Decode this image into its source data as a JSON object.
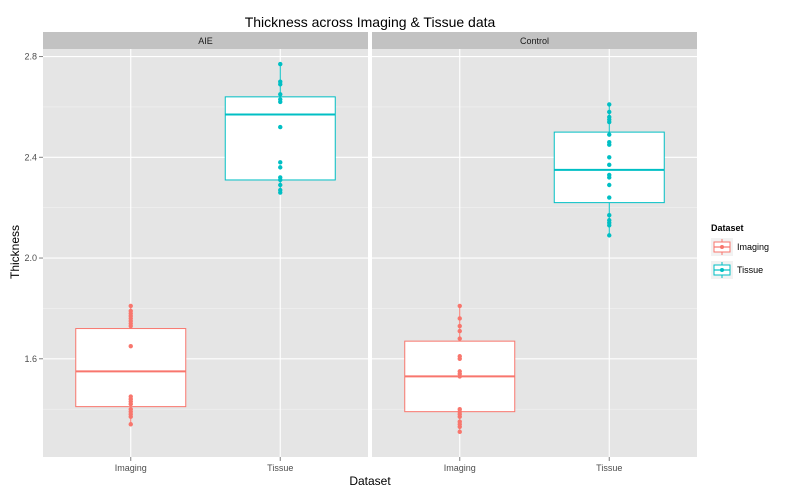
{
  "chart_data": {
    "type": "box",
    "title": "Thickness across Imaging & Tissue data",
    "xlabel": "Dataset",
    "ylabel": "Thickness",
    "ylim": [
      1.21,
      2.83
    ],
    "y_ticks": [
      "1.6",
      "2.0",
      "2.4",
      "2.8"
    ],
    "y_tick_values": [
      1.6,
      2.0,
      2.4,
      2.8
    ],
    "categories": [
      "Imaging",
      "Tissue"
    ],
    "grid": true,
    "legend": {
      "title": "Dataset",
      "position": "right",
      "entries": [
        "Imaging",
        "Tissue"
      ]
    },
    "colors": {
      "Imaging": "#f8766d",
      "Tissue": "#00bfc4"
    },
    "facets": [
      {
        "label": "AIE",
        "boxes": [
          {
            "category": "Imaging",
            "q1": 1.41,
            "median": 1.55,
            "q3": 1.72,
            "min": 1.34,
            "max": 1.81,
            "points": [
              1.81,
              1.79,
              1.78,
              1.77,
              1.76,
              1.75,
              1.74,
              1.73,
              1.65,
              1.45,
              1.44,
              1.43,
              1.42,
              1.4,
              1.39,
              1.38,
              1.37,
              1.34
            ]
          },
          {
            "category": "Tissue",
            "q1": 2.31,
            "median": 2.57,
            "q3": 2.64,
            "min": 2.26,
            "max": 2.77,
            "points": [
              2.77,
              2.7,
              2.69,
              2.65,
              2.63,
              2.62,
              2.52,
              2.38,
              2.36,
              2.32,
              2.31,
              2.29,
              2.27,
              2.26
            ]
          }
        ]
      },
      {
        "label": "Control",
        "boxes": [
          {
            "category": "Imaging",
            "q1": 1.39,
            "median": 1.53,
            "q3": 1.67,
            "min": 1.31,
            "max": 1.81,
            "points": [
              1.81,
              1.76,
              1.73,
              1.71,
              1.68,
              1.61,
              1.6,
              1.55,
              1.54,
              1.53,
              1.4,
              1.39,
              1.38,
              1.37,
              1.35,
              1.34,
              1.33,
              1.31
            ]
          },
          {
            "category": "Tissue",
            "q1": 2.22,
            "median": 2.35,
            "q3": 2.5,
            "min": 2.09,
            "max": 2.61,
            "points": [
              2.61,
              2.58,
              2.56,
              2.55,
              2.54,
              2.49,
              2.46,
              2.45,
              2.4,
              2.37,
              2.33,
              2.32,
              2.29,
              2.24,
              2.17,
              2.15,
              2.14,
              2.13,
              2.09
            ]
          }
        ]
      }
    ]
  }
}
